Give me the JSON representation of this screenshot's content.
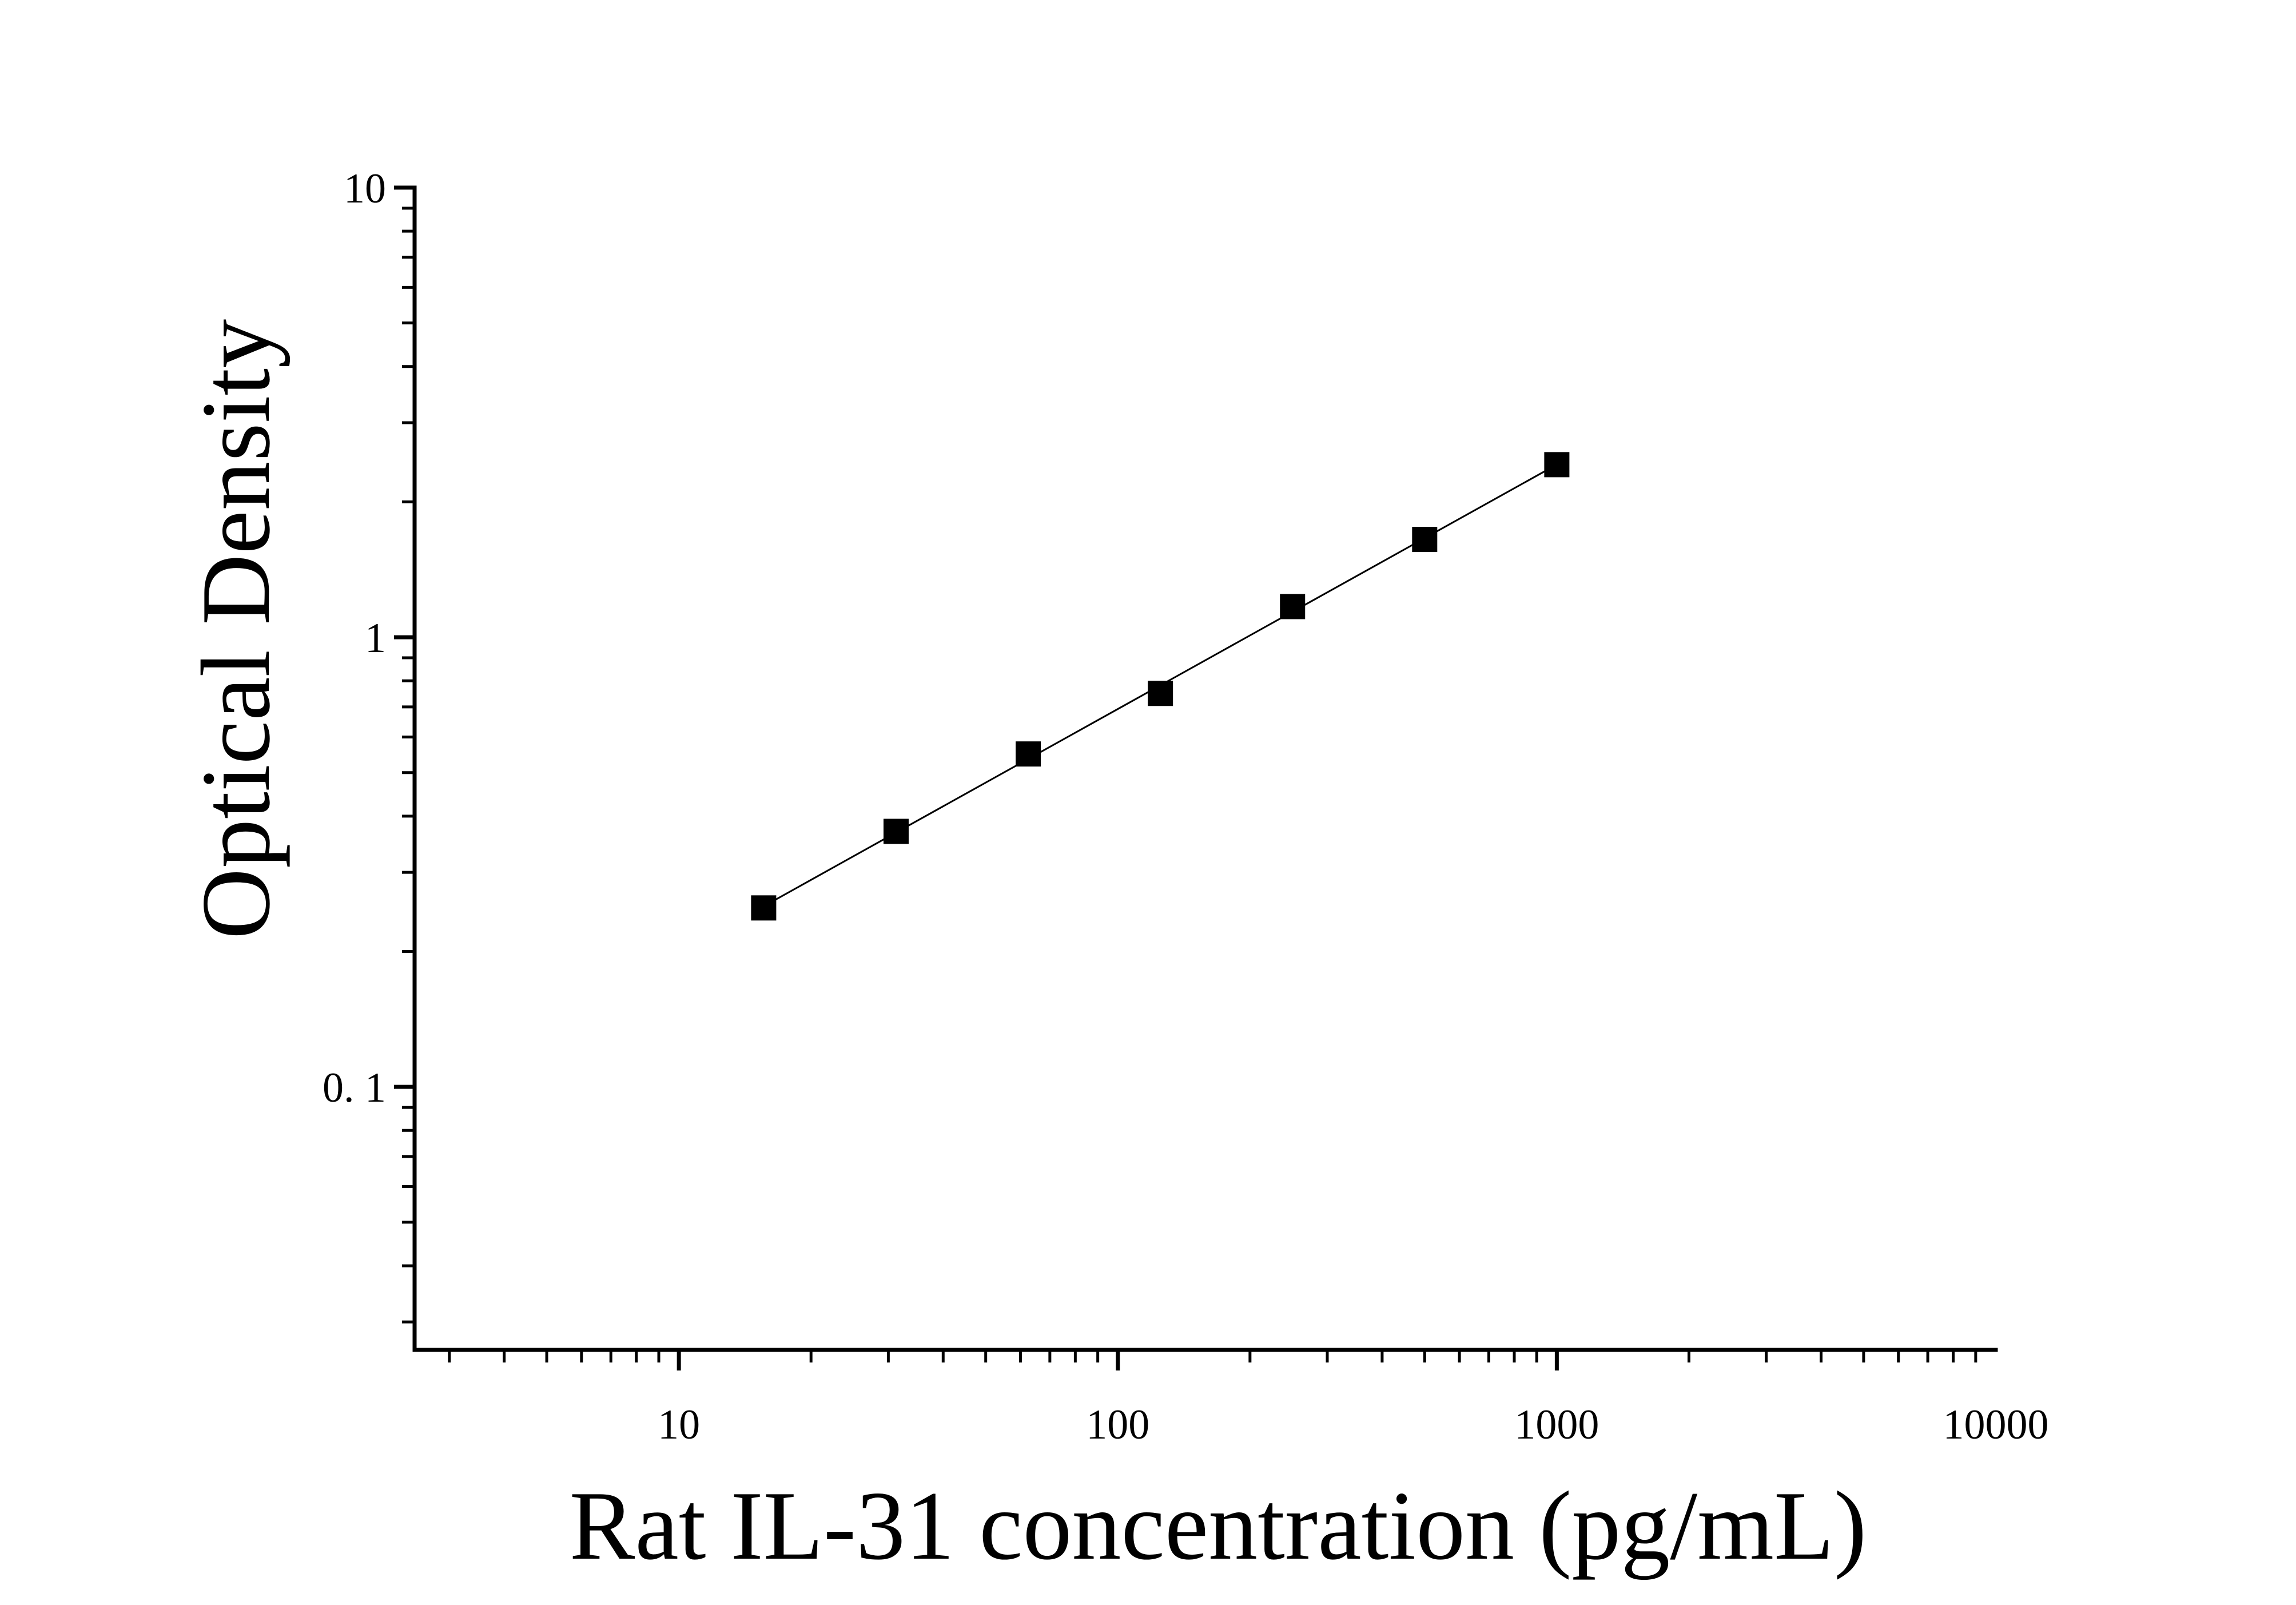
{
  "chart_data": {
    "type": "scatter",
    "title": "",
    "xlabel": "Rat IL-31 concentration (pg/mL)",
    "ylabel": "Optical Density",
    "x_scale": "log",
    "y_scale": "log",
    "xlim": [
      2.5,
      10000
    ],
    "ylim": [
      0.026,
      10
    ],
    "x_ticks": [
      {
        "value": 10,
        "label": "10"
      },
      {
        "value": 100,
        "label": "100"
      },
      {
        "value": 1000,
        "label": "1000"
      },
      {
        "value": 10000,
        "label": "10000"
      }
    ],
    "y_ticks": [
      {
        "value": 0.1,
        "label": "0. 1"
      },
      {
        "value": 1,
        "label": "1"
      },
      {
        "value": 10,
        "label": "10"
      }
    ],
    "grid": false,
    "legend": "none",
    "fit_line": true,
    "marker": "square",
    "color": "#000000",
    "series": [
      {
        "x": [
          15.6,
          31.25,
          62.5,
          125,
          250,
          500,
          1000
        ],
        "y": [
          0.25,
          0.37,
          0.55,
          0.75,
          1.17,
          1.65,
          2.42
        ]
      }
    ]
  }
}
